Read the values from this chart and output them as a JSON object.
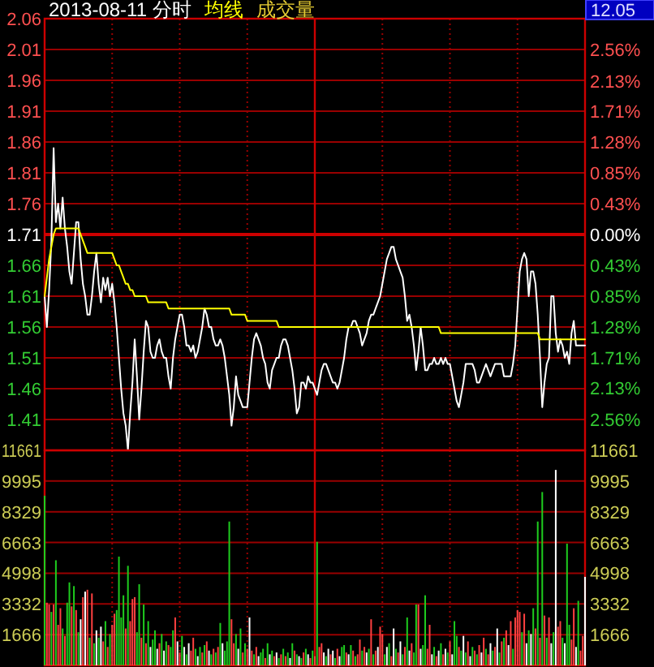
{
  "chart_data": [
    {
      "type": "line",
      "title": "2013-08-11 分时",
      "grid": true,
      "categories": [
        null,
        null,
        null,
        null,
        null,
        null,
        null,
        null,
        null,
        null,
        null,
        null,
        null,
        null,
        null,
        null,
        null,
        null,
        null,
        null,
        null,
        null,
        null,
        null,
        null,
        null,
        null,
        null,
        null,
        null,
        null,
        null,
        null,
        null,
        null,
        null,
        null,
        null,
        null,
        null,
        null,
        null,
        null,
        null,
        null,
        null,
        null,
        null,
        null,
        null,
        null,
        null,
        null,
        null,
        null,
        null,
        null,
        null,
        null,
        null,
        null,
        null,
        null,
        null,
        null,
        null,
        null,
        null,
        null,
        null,
        null,
        null,
        null,
        null,
        null,
        null,
        null,
        null,
        null,
        null,
        null,
        null,
        null,
        null,
        null,
        null,
        null,
        null,
        null,
        null,
        null,
        null,
        null,
        null,
        null,
        null,
        null,
        null,
        null,
        null,
        null,
        null,
        null,
        null,
        null,
        null,
        null,
        null,
        null,
        null,
        null,
        null,
        null,
        null,
        null,
        null,
        null,
        null,
        null,
        null,
        null,
        null,
        null,
        null,
        null,
        null,
        null,
        null,
        null,
        null,
        null,
        null,
        null,
        null,
        null,
        null,
        null,
        null,
        null,
        null,
        null,
        null,
        null,
        null,
        null,
        null,
        null,
        null,
        null,
        null,
        null,
        null,
        null,
        null,
        null,
        null,
        null,
        null,
        null,
        null,
        null,
        null,
        null,
        null,
        null,
        null,
        null,
        null,
        null,
        null,
        null,
        null,
        null,
        null,
        null,
        null,
        null,
        null,
        null,
        null,
        null,
        null,
        null,
        null,
        null,
        null,
        null,
        null,
        null,
        null,
        null,
        null,
        null,
        null,
        null,
        null,
        null,
        null,
        null,
        null,
        null,
        null,
        null,
        null,
        null,
        null,
        null,
        null,
        null,
        null,
        null,
        null,
        null,
        null,
        null,
        null,
        null,
        null,
        null,
        null,
        null,
        null,
        null,
        null,
        null,
        null,
        null,
        null,
        null,
        null,
        null,
        null,
        null,
        null,
        null,
        null,
        null,
        null,
        null,
        null,
        null
      ],
      "ylim": [
        1.36,
        2.06
      ],
      "yticks": [
        2.06,
        2.01,
        1.96,
        1.91,
        1.86,
        1.81,
        1.76,
        1.71,
        1.66,
        1.61,
        1.56,
        1.51,
        1.46,
        1.41
      ],
      "y2lim": [
        -2.99,
        2.99
      ],
      "y2ticks": [
        {
          "value": 2.56,
          "label": "2.56%"
        },
        {
          "value": 2.13,
          "label": "2.13%"
        },
        {
          "value": 1.71,
          "label": "1.71%"
        },
        {
          "value": 1.28,
          "label": "1.28%"
        },
        {
          "value": 0.85,
          "label": "0.85%"
        },
        {
          "value": 0.43,
          "label": "0.43%"
        },
        {
          "value": 0,
          "label": "0.00%"
        },
        {
          "value": -0.43,
          "label": "0.43%"
        },
        {
          "value": -0.85,
          "label": "0.85%"
        },
        {
          "value": -1.28,
          "label": "1.28%"
        },
        {
          "value": -1.71,
          "label": "1.71%"
        },
        {
          "value": -2.13,
          "label": "2.13%"
        },
        {
          "value": -2.56,
          "label": "2.56%"
        }
      ],
      "ref_lines": [
        {
          "axis": "y",
          "value": 1.71
        }
      ],
      "annotations": [
        "12.05"
      ],
      "series": [
        {
          "color": "#ffffff",
          "values": [
            1.61,
            1.56,
            1.62,
            1.7,
            1.85,
            1.73,
            1.76,
            1.72,
            1.77,
            1.72,
            1.69,
            1.65,
            1.63,
            1.68,
            1.73,
            1.73,
            1.67,
            1.63,
            1.61,
            1.58,
            1.58,
            1.61,
            1.65,
            1.68,
            1.63,
            1.6,
            1.64,
            1.62,
            1.64,
            1.61,
            1.63,
            1.6,
            1.56,
            1.51,
            1.46,
            1.42,
            1.4,
            1.36,
            1.42,
            1.47,
            1.54,
            1.48,
            1.41,
            1.46,
            1.52,
            1.57,
            1.56,
            1.52,
            1.51,
            1.51,
            1.53,
            1.54,
            1.52,
            1.51,
            1.51,
            1.48,
            1.46,
            1.51,
            1.54,
            1.56,
            1.58,
            1.58,
            1.56,
            1.53,
            1.53,
            1.52,
            1.53,
            1.51,
            1.52,
            1.54,
            1.56,
            1.59,
            1.58,
            1.56,
            1.56,
            1.54,
            1.53,
            1.53,
            1.54,
            1.53,
            1.51,
            1.48,
            1.45,
            1.4,
            1.43,
            1.48,
            1.45,
            1.44,
            1.43,
            1.43,
            1.43,
            1.47,
            1.51,
            1.54,
            1.55,
            1.54,
            1.53,
            1.51,
            1.5,
            1.47,
            1.46,
            1.49,
            1.5,
            1.51,
            1.51,
            1.53,
            1.54,
            1.54,
            1.53,
            1.51,
            1.49,
            1.46,
            1.42,
            1.43,
            1.47,
            1.47,
            1.46,
            1.48,
            1.47,
            1.47,
            1.46,
            1.45,
            1.47,
            1.49,
            1.5,
            1.5,
            1.49,
            1.48,
            1.47,
            1.47,
            1.46,
            1.47,
            1.49,
            1.51,
            1.54,
            1.56,
            1.56,
            1.57,
            1.57,
            1.56,
            1.55,
            1.53,
            1.54,
            1.55,
            1.57,
            1.58,
            1.58,
            1.59,
            1.6,
            1.61,
            1.63,
            1.65,
            1.67,
            1.68,
            1.69,
            1.69,
            1.67,
            1.66,
            1.65,
            1.64,
            1.61,
            1.57,
            1.58,
            1.56,
            1.53,
            1.49,
            1.52,
            1.56,
            1.53,
            1.49,
            1.49,
            1.5,
            1.5,
            1.51,
            1.5,
            1.5,
            1.51,
            1.5,
            1.51,
            1.5,
            1.5,
            1.48,
            1.46,
            1.44,
            1.43,
            1.45,
            1.47,
            1.5,
            1.5,
            1.5,
            1.5,
            1.49,
            1.47,
            1.47,
            1.48,
            1.49,
            1.5,
            1.49,
            1.48,
            1.49,
            1.5,
            1.5,
            1.5,
            1.5,
            1.48,
            1.48,
            1.48,
            1.48,
            1.5,
            1.53,
            1.59,
            1.65,
            1.67,
            1.68,
            1.67,
            1.61,
            1.65,
            1.65,
            1.63,
            1.58,
            1.51,
            1.43,
            1.47,
            1.5,
            1.51,
            1.61,
            1.61,
            1.55,
            1.52,
            1.54,
            1.53,
            1.51,
            1.52,
            1.5,
            1.55,
            1.57,
            1.53,
            1.53,
            1.53,
            1.53,
            1.53
          ]
        },
        {
          "name": "均线",
          "color": "#ffff00",
          "values": [
            1.61,
            1.64,
            1.67,
            1.69,
            1.71,
            1.72,
            1.72,
            1.72,
            1.72,
            1.72,
            1.72,
            1.72,
            1.72,
            1.72,
            1.72,
            1.72,
            1.71,
            1.7,
            1.69,
            1.68,
            1.68,
            1.68,
            1.68,
            1.68,
            1.68,
            1.68,
            1.68,
            1.68,
            1.68,
            1.68,
            1.68,
            1.67,
            1.66,
            1.66,
            1.65,
            1.64,
            1.63,
            1.63,
            1.62,
            1.62,
            1.61,
            1.61,
            1.61,
            1.61,
            1.61,
            1.61,
            1.6,
            1.6,
            1.6,
            1.6,
            1.6,
            1.6,
            1.6,
            1.6,
            1.6,
            1.59,
            1.59,
            1.59,
            1.59,
            1.59,
            1.59,
            1.59,
            1.59,
            1.59,
            1.59,
            1.59,
            1.59,
            1.59,
            1.59,
            1.59,
            1.59,
            1.59,
            1.59,
            1.59,
            1.59,
            1.59,
            1.59,
            1.59,
            1.59,
            1.59,
            1.59,
            1.59,
            1.59,
            1.58,
            1.58,
            1.58,
            1.58,
            1.58,
            1.58,
            1.58,
            1.57,
            1.57,
            1.57,
            1.57,
            1.57,
            1.57,
            1.57,
            1.57,
            1.57,
            1.57,
            1.57,
            1.57,
            1.57,
            1.57,
            1.56,
            1.56,
            1.56,
            1.56,
            1.56,
            1.56,
            1.56,
            1.56,
            1.56,
            1.56,
            1.56,
            1.56,
            1.56,
            1.56,
            1.56,
            1.56,
            1.56,
            1.56,
            1.56,
            1.56,
            1.56,
            1.56,
            1.56,
            1.56,
            1.56,
            1.56,
            1.56,
            1.56,
            1.56,
            1.56,
            1.56,
            1.56,
            1.56,
            1.56,
            1.56,
            1.56,
            1.56,
            1.56,
            1.56,
            1.56,
            1.56,
            1.56,
            1.56,
            1.56,
            1.56,
            1.56,
            1.56,
            1.56,
            1.56,
            1.56,
            1.56,
            1.56,
            1.56,
            1.56,
            1.56,
            1.56,
            1.56,
            1.56,
            1.56,
            1.56,
            1.56,
            1.56,
            1.56,
            1.56,
            1.56,
            1.56,
            1.56,
            1.56,
            1.56,
            1.56,
            1.56,
            1.56,
            1.55,
            1.55,
            1.55,
            1.55,
            1.55,
            1.55,
            1.55,
            1.55,
            1.55,
            1.55,
            1.55,
            1.55,
            1.55,
            1.55,
            1.55,
            1.55,
            1.55,
            1.55,
            1.55,
            1.55,
            1.55,
            1.55,
            1.55,
            1.55,
            1.55,
            1.55,
            1.55,
            1.55,
            1.55,
            1.55,
            1.55,
            1.55,
            1.55,
            1.55,
            1.55,
            1.55,
            1.55,
            1.55,
            1.55,
            1.55,
            1.55,
            1.55,
            1.55,
            1.55,
            1.54,
            1.54,
            1.54,
            1.54,
            1.54,
            1.54,
            1.54,
            1.54,
            1.54,
            1.54,
            1.54,
            1.54,
            1.54,
            1.54,
            1.54,
            1.54,
            1.54,
            1.54,
            1.54,
            1.54,
            1.54
          ]
        }
      ]
    },
    {
      "type": "bar",
      "title": "成交量",
      "grid": true,
      "categories": [
        null,
        null,
        null,
        null,
        null,
        null,
        null,
        null,
        null,
        null,
        null,
        null,
        null,
        null,
        null,
        null,
        null,
        null,
        null,
        null,
        null,
        null,
        null,
        null,
        null,
        null,
        null,
        null,
        null,
        null,
        null,
        null,
        null,
        null,
        null,
        null,
        null,
        null,
        null,
        null,
        null,
        null,
        null,
        null,
        null,
        null,
        null,
        null,
        null,
        null,
        null,
        null,
        null,
        null,
        null,
        null,
        null,
        null,
        null,
        null,
        null,
        null,
        null,
        null,
        null,
        null,
        null,
        null,
        null,
        null,
        null,
        null,
        null,
        null,
        null,
        null,
        null,
        null,
        null,
        null,
        null,
        null,
        null,
        null,
        null,
        null,
        null,
        null,
        null,
        null,
        null,
        null,
        null,
        null,
        null,
        null,
        null,
        null,
        null,
        null,
        null,
        null,
        null,
        null,
        null,
        null,
        null,
        null,
        null,
        null,
        null,
        null,
        null,
        null,
        null,
        null,
        null,
        null,
        null,
        null,
        null,
        null,
        null,
        null,
        null,
        null,
        null,
        null,
        null,
        null,
        null,
        null,
        null,
        null,
        null,
        null,
        null,
        null,
        null,
        null,
        null,
        null,
        null,
        null,
        null,
        null,
        null,
        null,
        null,
        null,
        null,
        null,
        null,
        null,
        null,
        null,
        null,
        null,
        null,
        null,
        null,
        null,
        null,
        null,
        null,
        null,
        null,
        null,
        null,
        null,
        null,
        null,
        null,
        null,
        null,
        null,
        null,
        null,
        null,
        null,
        null,
        null,
        null,
        null,
        null,
        null,
        null,
        null,
        null,
        null,
        null,
        null,
        null,
        null,
        null,
        null,
        null,
        null,
        null,
        null,
        null,
        null,
        null,
        null,
        null,
        null,
        null,
        null,
        null,
        null,
        null,
        null,
        null,
        null,
        null,
        null,
        null,
        null,
        null,
        null,
        null,
        null,
        null,
        null,
        null,
        null,
        null,
        null,
        null,
        null,
        null,
        null,
        null,
        null,
        null,
        null,
        null,
        null,
        null,
        null,
        null
      ],
      "ylim": [
        0,
        11661
      ],
      "yticks": [
        11661,
        9995,
        8329,
        6663,
        4998,
        3332,
        1666
      ],
      "y2lim": [
        0,
        11661
      ],
      "y2ticks": [
        11661,
        9995,
        8329,
        6663,
        4998,
        3332,
        1666
      ],
      "series": [
        {
          "values": [
            9200,
            3400,
            3300,
            2900,
            3300,
            5700,
            2200,
            3100,
            2000,
            1600,
            3400,
            4500,
            3200,
            4300,
            3000,
            1800,
            2500,
            3700,
            4000,
            4100,
            1500,
            3900,
            1200,
            1900,
            1500,
            2100,
            1300,
            2400,
            1000,
            1700,
            2200,
            2800,
            3000,
            5900,
            2600,
            3800,
            2000,
            5400,
            2400,
            3600,
            3700,
            1800,
            4400,
            1500,
            3300,
            1200,
            2400,
            1000,
            1400,
            1900,
            900,
            1200,
            1700,
            800,
            1300,
            1100,
            1000,
            1900,
            2600,
            1300,
            700,
            1600,
            1000,
            600,
            1200,
            800,
            1500,
            900,
            500,
            1000,
            700,
            1100,
            1300,
            800,
            600,
            900,
            700,
            1000,
            2300,
            1200,
            800,
            1300,
            7800,
            2500,
            1200,
            1700,
            900,
            2000,
            700,
            1200,
            900,
            2600,
            800,
            600,
            1000,
            500,
            700,
            900,
            400,
            1200,
            600,
            800,
            500,
            700,
            400,
            600,
            900,
            500,
            700,
            400,
            1200,
            800,
            600,
            500,
            400,
            700,
            900,
            600,
            400,
            800,
            500,
            6700,
            1000,
            1200,
            700,
            500,
            900,
            600,
            800,
            400,
            900,
            500,
            1000,
            1100,
            700,
            600,
            1100,
            800,
            500,
            600,
            1400,
            800,
            1000,
            700,
            900,
            2500,
            600,
            800,
            1000,
            2100,
            1700,
            600,
            1000,
            1200,
            500,
            2000,
            900,
            700,
            1300,
            600,
            1000,
            2600,
            800,
            1200,
            700,
            3300,
            3300,
            900,
            1100,
            3800,
            900,
            2200,
            600,
            1000,
            500,
            800,
            1200,
            600,
            900,
            700,
            1300,
            600,
            2400,
            1600,
            1000,
            800,
            1600,
            700,
            1300,
            500,
            1000,
            800,
            600,
            1100,
            700,
            1500,
            900,
            600,
            1200,
            800,
            1000,
            2000,
            700,
            1300,
            1500,
            1900,
            1100,
            2400,
            900,
            2600,
            3000,
            2900,
            1800,
            2800,
            1200,
            1900,
            1700,
            3100,
            2000,
            7800,
            1500,
            9400,
            2700,
            1500,
            2600,
            1200,
            1800,
            10600,
            2100,
            2400,
            1500,
            1200,
            6600,
            2200,
            1400,
            3100,
            1000,
            3500,
            800,
            1600,
            4800
          ],
          "colors": [
            "#1ecc1e",
            "#ff4040",
            "#ff4040",
            "#1ecc1e",
            "#ff4040",
            "#1ecc1e",
            "#ff4040",
            "#ff4040",
            "#1ecc1e",
            "#ff4040",
            "#1ecc1e",
            "#1ecc1e",
            "#ff4040",
            "#1ecc1e",
            "#ff4040",
            "#1ecc1e",
            "#ffffff",
            "#ff4040",
            "#ffffff",
            "#ff4040",
            "#1ecc1e",
            "#ff4040",
            "#1ecc1e",
            "#ffffff",
            "#1ecc1e",
            "#ffffff",
            "#ff4040",
            "#1ecc1e",
            "#ff4040",
            "#1ecc1e",
            "#ff4040",
            "#ff4040",
            "#1ecc1e",
            "#1ecc1e",
            "#1ecc1e",
            "#1ecc1e",
            "#ff4040",
            "#1ecc1e",
            "#ff4040",
            "#ff4040",
            "#ff4040",
            "#1ecc1e",
            "#1ecc1e",
            "#ff4040",
            "#1ecc1e",
            "#ff4040",
            "#1ecc1e",
            "#ffffff",
            "#1ecc1e",
            "#1ecc1e",
            "#ffffff",
            "#ff4040",
            "#1ecc1e",
            "#ffffff",
            "#1ecc1e",
            "#ff4040",
            "#1ecc1e",
            "#1ecc1e",
            "#ff4040",
            "#ffffff",
            "#ff4040",
            "#1ecc1e",
            "#ffffff",
            "#1ecc1e",
            "#ffffff",
            "#ff4040",
            "#ff4040",
            "#1ecc1e",
            "#ffffff",
            "#1ecc1e",
            "#ff4040",
            "#1ecc1e",
            "#ff4040",
            "#ffffff",
            "#1ecc1e",
            "#ff4040",
            "#1ecc1e",
            "#ff4040",
            "#1ecc1e",
            "#ffffff",
            "#1ecc1e",
            "#1ecc1e",
            "#1ecc1e",
            "#ff4040",
            "#ff4040",
            "#1ecc1e",
            "#ffffff",
            "#1ecc1e",
            "#ff4040",
            "#1ecc1e",
            "#ff4040",
            "#ffffff",
            "#ff4040",
            "#1ecc1e",
            "#ff4040",
            "#ffffff",
            "#1ecc1e",
            "#1ecc1e",
            "#ff4040",
            "#1ecc1e",
            "#ffffff",
            "#1ecc1e",
            "#ff4040",
            "#ffffff",
            "#1ecc1e",
            "#ff4040",
            "#1ecc1e",
            "#ff4040",
            "#1ecc1e",
            "#ffffff",
            "#1ecc1e",
            "#ff4040",
            "#1ecc1e",
            "#ffffff",
            "#1ecc1e",
            "#ff4040",
            "#1ecc1e",
            "#ffffff",
            "#ff4040",
            "#1ecc1e",
            "#ff4040",
            "#1ecc1e",
            "#ff4040",
            "#ff4040",
            "#ffffff",
            "#1ecc1e",
            "#ffffff",
            "#ff4040",
            "#ffffff",
            "#1ecc1e",
            "#ff4040",
            "#ffffff",
            "#1ecc1e",
            "#1ecc1e",
            "#ff4040",
            "#ffffff",
            "#1ecc1e",
            "#ff4040",
            "#1ecc1e",
            "#ff4040",
            "#ff4040",
            "#1ecc1e",
            "#ff4040",
            "#ffffff",
            "#1ecc1e",
            "#ff4040",
            "#1ecc1e",
            "#ff4040",
            "#ffffff",
            "#ff4040",
            "#ff4040",
            "#1ecc1e",
            "#ffffff",
            "#1ecc1e",
            "#ff4040",
            "#ffffff",
            "#1ecc1e",
            "#ff4040",
            "#ffffff",
            "#1ecc1e",
            "#ff4040",
            "#1ecc1e",
            "#ffffff",
            "#ff4040",
            "#1ecc1e",
            "#1ecc1e",
            "#ff4040",
            "#ffffff",
            "#1ecc1e",
            "#1ecc1e",
            "#ff4040",
            "#ff4040",
            "#ffffff",
            "#1ecc1e",
            "#ff4040",
            "#ffffff",
            "#1ecc1e",
            "#ff4040",
            "#ffffff",
            "#1ecc1e",
            "#ff4040",
            "#ffffff",
            "#1ecc1e",
            "#1ecc1e",
            "#ff4040",
            "#1ecc1e",
            "#ffffff",
            "#1ecc1e",
            "#ff4040",
            "#ffffff",
            "#1ecc1e",
            "#ff4040",
            "#1ecc1e",
            "#ff4040",
            "#ffffff",
            "#ff4040",
            "#1ecc1e",
            "#ff4040",
            "#ffffff",
            "#1ecc1e",
            "#ff4040",
            "#ffffff",
            "#1ecc1e",
            "#ff4040",
            "#1ecc1e",
            "#ff4040",
            "#ffffff",
            "#ff4040",
            "#1ecc1e",
            "#ff4040",
            "#ff4040",
            "#ff4040",
            "#1ecc1e",
            "#ff4040",
            "#ffffff",
            "#1ecc1e",
            "#ffffff",
            "#1ecc1e",
            "#ff4040",
            "#1ecc1e",
            "#ff4040",
            "#1ecc1e",
            "#ff4040",
            "#1ecc1e",
            "#ff4040",
            "#ffffff",
            "#1ecc1e",
            "#ffffff",
            "#ff4040",
            "#ff4040",
            "#1ecc1e",
            "#ffffff",
            "#1ecc1e",
            "#1ecc1e",
            "#ff4040",
            "#ff4040",
            "#ffffff",
            "#1ecc1e",
            "#ff4040",
            "#ff4040",
            "#ffffff"
          ]
        }
      ]
    }
  ]
}
